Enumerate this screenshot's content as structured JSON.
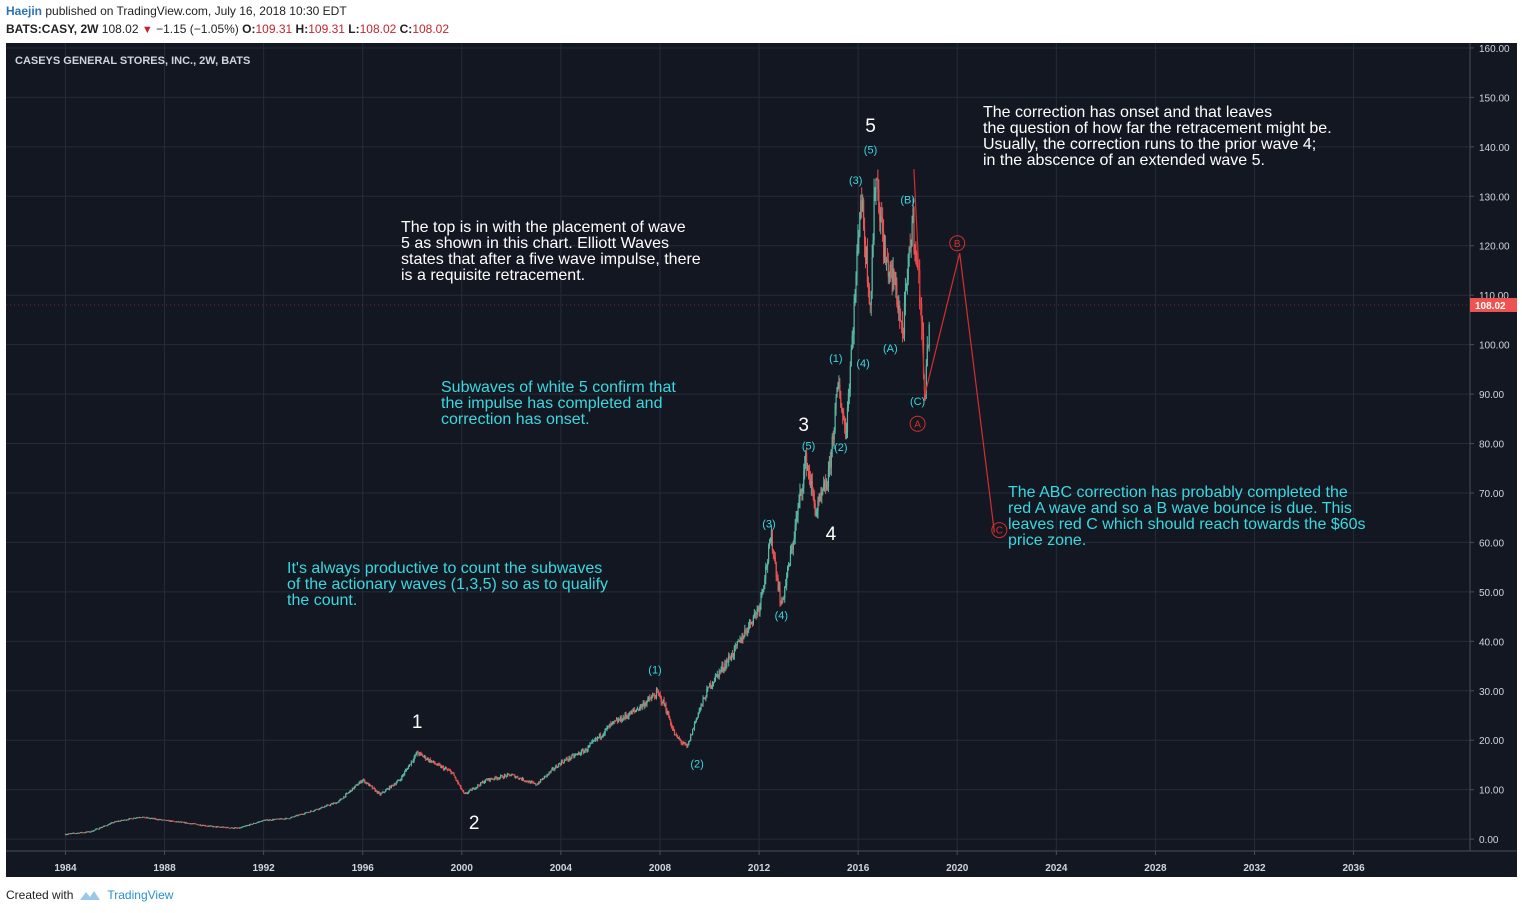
{
  "header": {
    "author": "Haejin",
    "published": "published on TradingView.com, July 16, 2018 10:30 EDT",
    "symbol": "BATS:CASY, 2W",
    "last": "108.02",
    "change": "−1.15 (−1.05%)",
    "o_label": "O:",
    "o_value": "109.31",
    "h_label": "H:",
    "h_value": "109.31",
    "l_label": "L:",
    "l_value": "108.02",
    "c_label": "C:",
    "c_value": "108.02"
  },
  "footer": {
    "created_with": "Created with",
    "brand": "TradingView"
  },
  "chart_data": {
    "type": "candlestick",
    "title": "CASEYS GENERAL STORES, INC., 2W, BATS",
    "last_price_label": "108.02",
    "last_price": 108.02,
    "xlim": [
      1981.6,
      2040.7
    ],
    "ylim": [
      -2.4,
      161
    ],
    "x_ticks": [
      1984,
      1988,
      1992,
      1996,
      2000,
      2004,
      2008,
      2012,
      2016,
      2020,
      2024,
      2028,
      2032,
      2036
    ],
    "y_ticks": [
      "0.00",
      "10.00",
      "20.00",
      "30.00",
      "40.00",
      "50.00",
      "60.00",
      "70.00",
      "80.00",
      "90.00",
      "100.00",
      "110.00",
      "120.00",
      "130.00",
      "140.00",
      "150.00",
      "160.00"
    ],
    "price_path": [
      [
        1984.0,
        1.0
      ],
      [
        1985.0,
        1.5
      ],
      [
        1986.0,
        3.5
      ],
      [
        1987.0,
        4.5
      ],
      [
        1988.0,
        3.8
      ],
      [
        1989.0,
        3.2
      ],
      [
        1990.0,
        2.5
      ],
      [
        1991.0,
        2.2
      ],
      [
        1992.0,
        3.8
      ],
      [
        1993.0,
        4.2
      ],
      [
        1994.0,
        5.8
      ],
      [
        1995.0,
        7.5
      ],
      [
        1996.0,
        12.0
      ],
      [
        1996.7,
        9.0
      ],
      [
        1997.5,
        12.0
      ],
      [
        1998.2,
        17.5
      ],
      [
        1999.0,
        15.0
      ],
      [
        1999.6,
        13.5
      ],
      [
        2000.1,
        9.0
      ],
      [
        2001.0,
        12.0
      ],
      [
        2002.0,
        13.0
      ],
      [
        2003.0,
        11.0
      ],
      [
        2004.0,
        15.5
      ],
      [
        2005.0,
        18.0
      ],
      [
        2006.0,
        23.0
      ],
      [
        2007.0,
        26.0
      ],
      [
        2007.9,
        29.5
      ],
      [
        2008.2,
        27.0
      ],
      [
        2008.6,
        21.0
      ],
      [
        2009.1,
        18.5
      ],
      [
        2009.5,
        25.0
      ],
      [
        2010.0,
        31.0
      ],
      [
        2011.0,
        38.0
      ],
      [
        2012.0,
        47.0
      ],
      [
        2012.5,
        61.0
      ],
      [
        2012.9,
        47.0
      ],
      [
        2013.3,
        58.0
      ],
      [
        2013.9,
        77.0
      ],
      [
        2014.3,
        66.0
      ],
      [
        2014.8,
        73.0
      ],
      [
        2015.2,
        92.0
      ],
      [
        2015.5,
        82.0
      ],
      [
        2015.9,
        112.0
      ],
      [
        2016.1,
        131.0
      ],
      [
        2016.5,
        108.0
      ],
      [
        2016.7,
        135.5
      ],
      [
        2017.1,
        117.0
      ],
      [
        2017.5,
        112.0
      ],
      [
        2017.8,
        102.0
      ],
      [
        2018.2,
        126.0
      ],
      [
        2018.5,
        110.0
      ],
      [
        2018.7,
        90.0
      ],
      [
        2018.9,
        108.0
      ]
    ],
    "projection": [
      [
        2018.25,
        135.5
      ],
      [
        2018.7,
        90.0
      ],
      [
        2020.1,
        118.5
      ],
      [
        2021.5,
        62.0
      ]
    ],
    "wave_labels": [
      {
        "text": "1",
        "x": 1998.2,
        "y": 22.5,
        "style": "white"
      },
      {
        "text": "2",
        "x": 2000.5,
        "y": 2.0,
        "style": "white"
      },
      {
        "text": "3",
        "x": 2013.8,
        "y": 82.5,
        "style": "white"
      },
      {
        "text": "4",
        "x": 2014.9,
        "y": 60.5,
        "style": "white"
      },
      {
        "text": "5",
        "x": 2016.5,
        "y": 143.0,
        "style": "white"
      },
      {
        "text": "(1)",
        "x": 2007.8,
        "y": 33.5,
        "style": "cyan"
      },
      {
        "text": "(2)",
        "x": 2009.5,
        "y": 14.5,
        "style": "cyan"
      },
      {
        "text": "(3)",
        "x": 2012.4,
        "y": 63.0,
        "style": "cyan"
      },
      {
        "text": "(4)",
        "x": 2012.9,
        "y": 44.5,
        "style": "cyan"
      },
      {
        "text": "(5)",
        "x": 2014.0,
        "y": 78.8,
        "style": "cyan"
      },
      {
        "text": "(1)",
        "x": 2015.1,
        "y": 96.5,
        "style": "cyan"
      },
      {
        "text": "(2)",
        "x": 2015.3,
        "y": 78.5,
        "style": "cyan"
      },
      {
        "text": "(3)",
        "x": 2015.9,
        "y": 132.5,
        "style": "cyan"
      },
      {
        "text": "(4)",
        "x": 2016.2,
        "y": 95.5,
        "style": "cyan"
      },
      {
        "text": "(5)",
        "x": 2016.5,
        "y": 138.7,
        "style": "cyan"
      },
      {
        "text": "(A)",
        "x": 2017.3,
        "y": 98.5,
        "style": "cyan"
      },
      {
        "text": "(B)",
        "x": 2018.0,
        "y": 128.5,
        "style": "cyan"
      },
      {
        "text": "(C)",
        "x": 2018.4,
        "y": 87.8,
        "style": "cyan"
      }
    ],
    "red_labels": [
      {
        "text": "A",
        "x": 2018.4,
        "y": 84.0
      },
      {
        "text": "B",
        "x": 2020.0,
        "y": 120.5
      },
      {
        "text": "C",
        "x": 2021.7,
        "y": 62.5
      }
    ],
    "annotations": {
      "top_right": "The correction has onset and that leaves\nthe question of how far the retracement might be.\nUsually, the correction runs to the prior wave 4;\nin the abscence of an extended wave 5.",
      "top_is_in": "The top is in with the placement of wave\n5 as shown in this chart. Elliott Waves\nstates that after a five wave impulse, there\nis a requisite retracement.",
      "subwaves": "Subwaves of white 5 confirm that\nthe impulse has completed and\ncorrection has onset.",
      "productive": "It's always productive to count the subwaves\nof the actionary waves (1,3,5) so as to qualify\nthe count.",
      "abc": "The ABC correction has probably completed the\nred A wave and so a B wave bounce is due. This\nleaves red C which should reach towards the $60s\nprice zone."
    },
    "colors": {
      "background": "#131722",
      "grid": "#262b38",
      "candle_up": "#57b8a3",
      "candle_down": "#ea5455",
      "projection": "#d32f2f",
      "axis_text": "#d1d4dc",
      "cyan": "#3ad8df",
      "price_tag": "#ef5350"
    }
  }
}
